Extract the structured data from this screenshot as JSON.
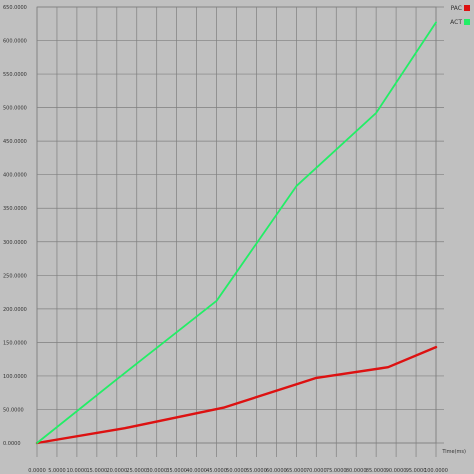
{
  "chart_data": {
    "type": "line",
    "title": "",
    "xlabel": "Time(ms)",
    "ylabel": "",
    "x": [
      0,
      10000,
      20000,
      30000,
      40000,
      50000,
      60000,
      70000,
      80000,
      90000,
      100000
    ],
    "xlim": [
      0,
      100000
    ],
    "ylim": [
      0,
      650000
    ],
    "x_ticks": [
      0,
      5000,
      10000,
      15000,
      20000,
      25000,
      30000,
      35000,
      40000,
      45000,
      50000,
      55000,
      60000,
      65000,
      70000,
      75000,
      80000,
      85000,
      90000,
      95000,
      100000
    ],
    "x_tick_labels": [
      "0.0000",
      "5.0000",
      "10.0000",
      "15.0000",
      "20.0000",
      "25.0000",
      "30.0000",
      "35.0000",
      "40.0000",
      "45.0000",
      "50.0000",
      "55.0000",
      "60.0000",
      "65.0000",
      "70.0000",
      "75.0000",
      "80.0000",
      "85.0000",
      "90.0000",
      "95.0000",
      "100.0000"
    ],
    "y_ticks": [
      0,
      50000,
      100000,
      150000,
      200000,
      250000,
      300000,
      350000,
      400000,
      450000,
      500000,
      550000,
      600000,
      650000
    ],
    "y_tick_labels": [
      "0.0000",
      "50.0000",
      "100.0000",
      "150.0000",
      "200.0000",
      "250.0000",
      "300.0000",
      "350.0000",
      "400.0000",
      "450.0000",
      "500.0000",
      "550.0000",
      "600.0000",
      "650.0000"
    ],
    "grid": true,
    "legend": "top-right",
    "series": [
      {
        "name": "PAC",
        "color": "#dd1111",
        "x": [
          0,
          22000,
          47000,
          70000,
          88000,
          100000
        ],
        "values": [
          0,
          22000,
          53000,
          97000,
          113000,
          143000
        ]
      },
      {
        "name": "ACT",
        "color": "#22ee66",
        "x": [
          0,
          20000,
          45000,
          65000,
          85000,
          100000
        ],
        "values": [
          0,
          95000,
          212000,
          383000,
          492000,
          627000
        ]
      }
    ]
  }
}
